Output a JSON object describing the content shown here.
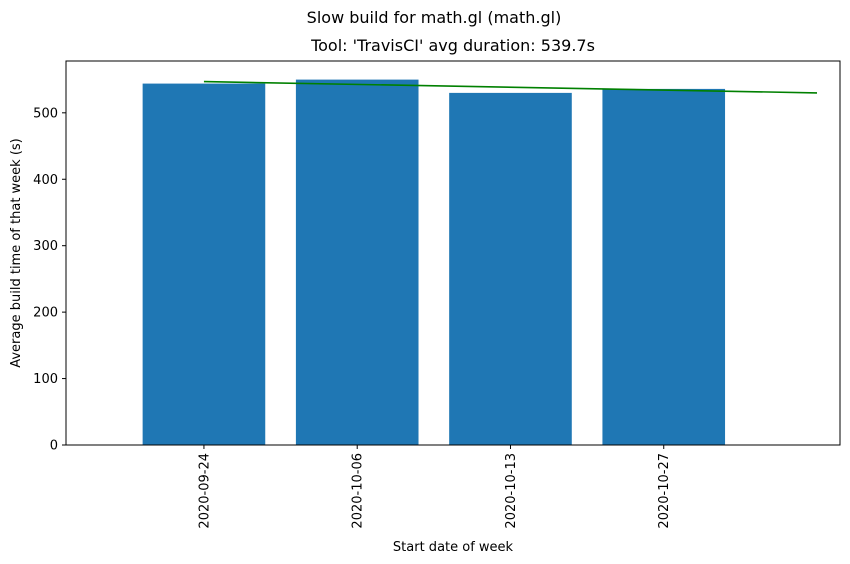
{
  "figure": {
    "suptitle": "Slow build for math.gl (math.gl)"
  },
  "chart_data": {
    "type": "bar",
    "title": "Tool: 'TravisCI' avg duration: 539.7s",
    "xlabel": "Start date of week",
    "ylabel": "Average build time of that week (s)",
    "categories": [
      "2020-09-24",
      "2020-10-06",
      "2020-10-13",
      "2020-10-27"
    ],
    "values": [
      544,
      550,
      530,
      536
    ],
    "ylim": [
      0,
      578
    ],
    "yticks": [
      0,
      100,
      200,
      300,
      400,
      500
    ],
    "xlim": [
      -0.9,
      4.15
    ],
    "bar_color": "#1f77b4",
    "trend_line": {
      "color": "#008000",
      "x": [
        0,
        4
      ],
      "y": [
        547,
        530
      ]
    },
    "grid": false
  }
}
